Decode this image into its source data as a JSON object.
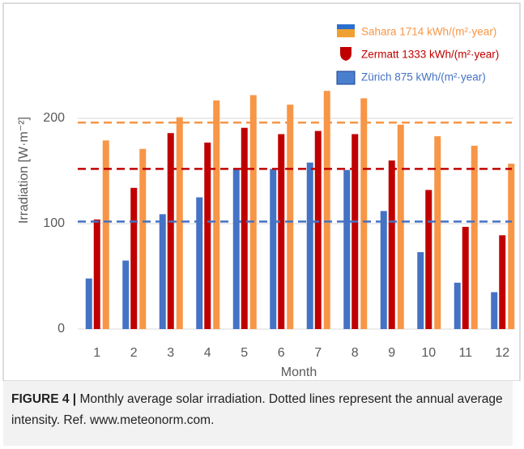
{
  "chart_data": {
    "type": "bar",
    "x_label": "Month",
    "y_label": "Irradiation [W·m⁻²]",
    "categories": [
      "1",
      "2",
      "3",
      "4",
      "5",
      "6",
      "7",
      "8",
      "9",
      "10",
      "11",
      "12"
    ],
    "series": [
      {
        "name": "Zürich 875 kWh/(m²·year)",
        "color": "#4472c4",
        "values": [
          48,
          65,
          109,
          125,
          152,
          152,
          158,
          151,
          112,
          73,
          44,
          35
        ],
        "average": 102
      },
      {
        "name": "Zermatt 1333 kWh/(m²·year)",
        "color": "#c00000",
        "values": [
          104,
          134,
          186,
          177,
          191,
          185,
          188,
          185,
          160,
          132,
          97,
          89
        ],
        "average": 152
      },
      {
        "name": "Sahara 1714 kWh/(m²·year)",
        "color": "#f79646",
        "values": [
          179,
          171,
          201,
          217,
          222,
          213,
          226,
          219,
          194,
          183,
          174,
          157
        ],
        "average": 196
      }
    ],
    "ylim": [
      0,
      300
    ],
    "yticks": [
      0,
      100,
      200
    ],
    "grid": true
  },
  "caption": {
    "label": "FIGURE 4 |",
    "text": "Monthly average solar irradiation. Dotted lines represent the annual average intensity. Ref. www.meteonorm.com."
  }
}
